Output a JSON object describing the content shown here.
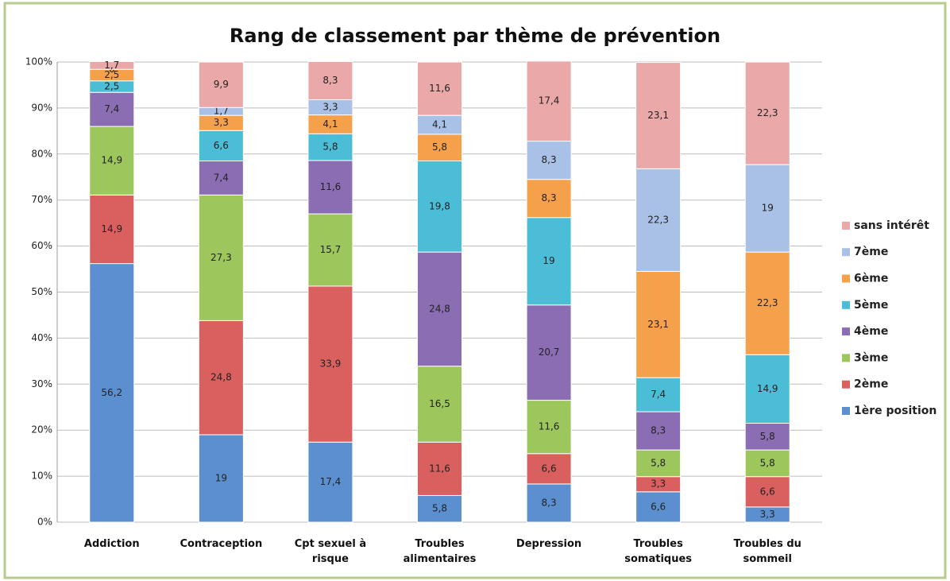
{
  "chart_data": {
    "type": "stacked_bar",
    "title": "Rang de classement par thème de prévention",
    "categories": [
      "Addiction",
      "Contraception",
      "Cpt sexuel à risque",
      "Troubles alimentaires",
      "Depression",
      "Troubles somatiques",
      "Troubles du sommeil"
    ],
    "series": [
      {
        "name": "1ère position",
        "color": "#5b8fd0",
        "values": [
          56.2,
          19,
          17.4,
          5.8,
          8.3,
          6.6,
          3.3
        ],
        "value_labels": [
          "56,2",
          "19",
          "17,4",
          "5,8",
          "8,3",
          "6,6",
          "3,3"
        ]
      },
      {
        "name": "2ème",
        "color": "#d9605e",
        "values": [
          14.9,
          24.8,
          33.9,
          11.6,
          6.6,
          3.3,
          6.6
        ],
        "value_labels": [
          "14,9",
          "24,8",
          "33,9",
          "11,6",
          "6,6",
          "3,3",
          "6,6"
        ]
      },
      {
        "name": "3ème",
        "color": "#9dc75c",
        "values": [
          14.9,
          27.3,
          15.7,
          16.5,
          11.6,
          5.8,
          5.8
        ],
        "value_labels": [
          "14,9",
          "27,3",
          "15,7",
          "16,5",
          "11,6",
          "5,8",
          "5,8"
        ]
      },
      {
        "name": "4ème",
        "color": "#8b6db3",
        "values": [
          7.4,
          7.4,
          11.6,
          24.8,
          20.7,
          8.3,
          5.8
        ],
        "value_labels": [
          "7,4",
          "7,4",
          "11,6",
          "24,8",
          "20,7",
          "8,3",
          "5,8"
        ]
      },
      {
        "name": "5ème",
        "color": "#4cbdd6",
        "values": [
          2.5,
          6.6,
          5.8,
          19.8,
          19,
          7.4,
          14.9
        ],
        "value_labels": [
          "2,5",
          "6,6",
          "5,8",
          "19,8",
          "19",
          "7,4",
          "14,9"
        ]
      },
      {
        "name": "6ème",
        "color": "#f5a04a",
        "values": [
          2.5,
          3.3,
          4.1,
          5.8,
          8.3,
          23.1,
          22.3
        ],
        "value_labels": [
          "2,5",
          "3,3",
          "4,1",
          "5,8",
          "8,3",
          "23,1",
          "22,3"
        ]
      },
      {
        "name": "7ème",
        "color": "#a9c1e6",
        "values": [
          0,
          1.7,
          3.3,
          4.1,
          8.3,
          22.3,
          19
        ],
        "value_labels": [
          "0",
          "1,7",
          "3,3",
          "4,1",
          "8,3",
          "22,3",
          "19"
        ]
      },
      {
        "name": "sans intérêt",
        "color": "#eba8a8",
        "values": [
          1.7,
          9.9,
          8.3,
          11.6,
          17.4,
          23.1,
          22.3
        ],
        "value_labels": [
          "1,7",
          "9,9",
          "8,3",
          "11,6",
          "17,4",
          "23,1",
          "22,3"
        ]
      }
    ],
    "ylim": [
      0,
      100
    ],
    "yticks": [
      {
        "value": 0,
        "label": "0%"
      },
      {
        "value": 10,
        "label": "10%"
      },
      {
        "value": 20,
        "label": "20%"
      },
      {
        "value": 30,
        "label": "30%"
      },
      {
        "value": 40,
        "label": "40%"
      },
      {
        "value": 50,
        "label": "50%"
      },
      {
        "value": 60,
        "label": "60%"
      },
      {
        "value": 70,
        "label": "70%"
      },
      {
        "value": 80,
        "label": "80%"
      },
      {
        "value": 90,
        "label": "90%"
      },
      {
        "value": 100,
        "label": "100%"
      }
    ],
    "grid": true,
    "legend": "right"
  }
}
